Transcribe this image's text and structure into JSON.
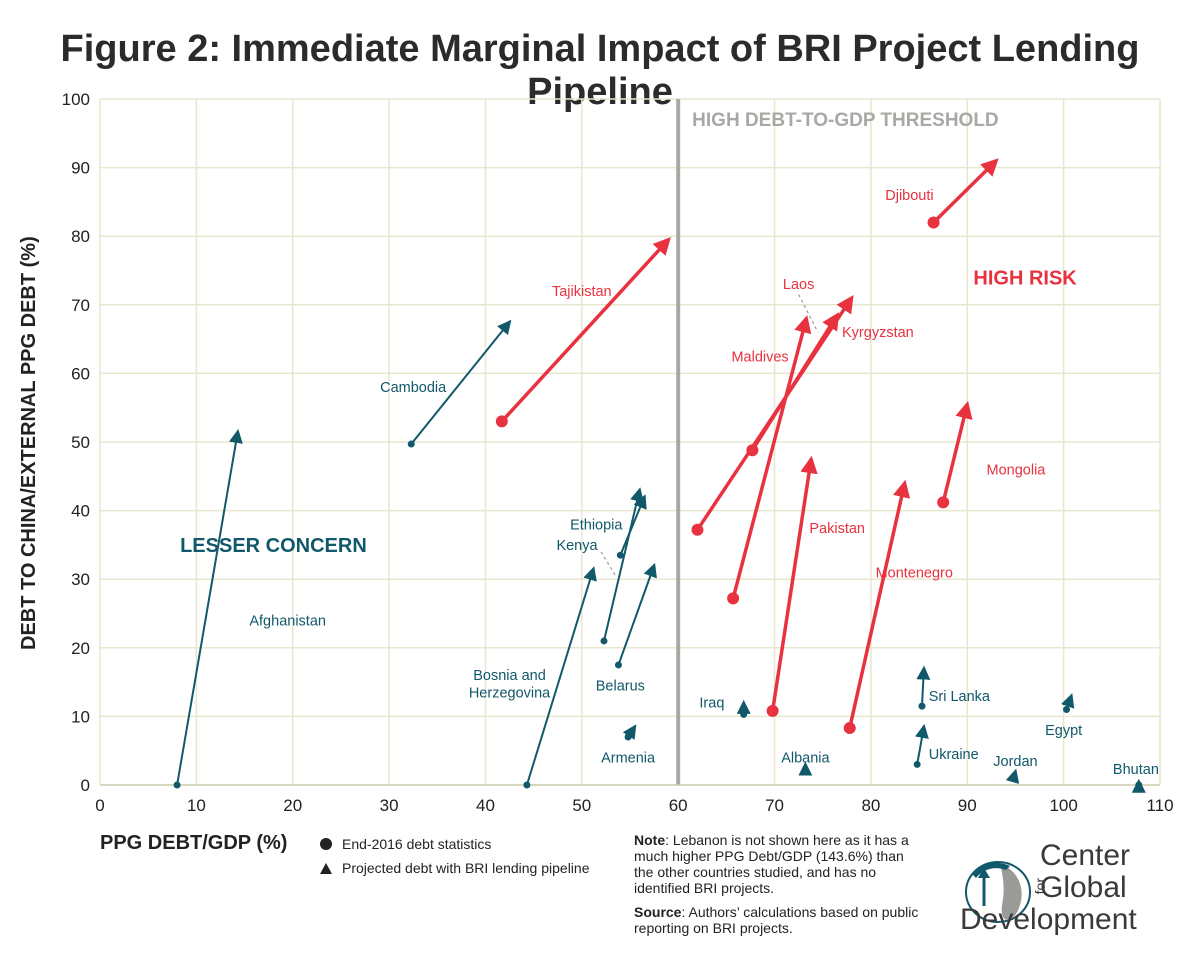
{
  "chart_data": {
    "type": "scatter",
    "title": "Figure 2: Immediate Marginal Impact of BRI Project Lending Pipeline",
    "xlabel": "PPG DEBT/GDP (%)",
    "ylabel": "DEBT TO CHINA/EXTERNAL PPG DEBT (%)",
    "xlim": [
      0,
      110
    ],
    "ylim": [
      0,
      100
    ],
    "xticks": [
      0,
      10,
      20,
      30,
      40,
      50,
      60,
      70,
      80,
      90,
      100,
      110
    ],
    "yticks": [
      0,
      10,
      20,
      30,
      40,
      50,
      60,
      70,
      80,
      90,
      100
    ],
    "grid": true,
    "threshold": {
      "x": 60,
      "label": "HIGH DEBT-TO-GDP THRESHOLD"
    },
    "region_labels": [
      {
        "text": "LESSER CONCERN",
        "x": 18,
        "y": 35,
        "group": "low"
      },
      {
        "text": "HIGH RISK",
        "x": 96,
        "y": 74,
        "group": "high"
      }
    ],
    "legend": {
      "circle": "End-2016 debt statistics",
      "triangle": "Projected debt with BRI lending pipeline"
    },
    "colors": {
      "high": "#e8323f",
      "low": "#11586a",
      "threshold": "#a8a8a4",
      "grid": "#e8e6cd"
    },
    "series": [
      {
        "name": "Afghanistan",
        "group": "low",
        "x0": 8,
        "y0": 0,
        "x1": 14.3,
        "y1": 51.5,
        "lx": 15.5,
        "ly": 24,
        "anchor": "start"
      },
      {
        "name": "Cambodia",
        "group": "low",
        "x0": 32.3,
        "y0": 49.7,
        "x1": 42.5,
        "y1": 67.5,
        "lx": 32.5,
        "ly": 58,
        "anchor": "middle"
      },
      {
        "name": "Ethiopia",
        "group": "low",
        "x0": 52.3,
        "y0": 21,
        "x1": 56,
        "y1": 43,
        "lx": 51.5,
        "ly": 38,
        "anchor": "middle"
      },
      {
        "name": "Kenya",
        "group": "low",
        "x0": 54,
        "y0": 33.5,
        "x1": 56.5,
        "y1": 42,
        "lx": 49.5,
        "ly": 35,
        "anchor": "middle"
      },
      {
        "name": "Belarus",
        "group": "low",
        "x0": 53.8,
        "y0": 17.5,
        "x1": 57.5,
        "y1": 32,
        "lx": 54,
        "ly": 14.5,
        "anchor": "middle"
      },
      {
        "name": "Bosnia and",
        "group": "low",
        "x0": 44.3,
        "y0": 0,
        "x1": 51.2,
        "y1": 31.5,
        "lx": 42.5,
        "ly": 16,
        "anchor": "middle"
      },
      {
        "name": "Herzegovina",
        "group": "low",
        "x0": null,
        "y0": null,
        "x1": null,
        "y1": null,
        "lx": 42.5,
        "ly": 13.5,
        "anchor": "middle"
      },
      {
        "name": "Armenia",
        "group": "low",
        "x0": 54.8,
        "y0": 7,
        "x1": 55.5,
        "y1": 8.5,
        "lx": 54.8,
        "ly": 4,
        "anchor": "middle"
      },
      {
        "name": "Iraq",
        "group": "low",
        "x0": 66.8,
        "y0": 10.3,
        "x1": 66.8,
        "y1": 12,
        "lx": 63.5,
        "ly": 12,
        "anchor": "middle"
      },
      {
        "name": "Albania",
        "group": "low",
        "x0": 73.2,
        "y0": 2,
        "x1": 73.2,
        "y1": 3,
        "lx": 73.2,
        "ly": 4,
        "anchor": "middle"
      },
      {
        "name": "Sri Lanka",
        "group": "low",
        "x0": 85.3,
        "y0": 11.5,
        "x1": 85.5,
        "y1": 17,
        "lx": 86,
        "ly": 13,
        "anchor": "start"
      },
      {
        "name": "Ukraine",
        "group": "low",
        "x0": 84.8,
        "y0": 3,
        "x1": 85.5,
        "y1": 8.5,
        "lx": 86,
        "ly": 4.5,
        "anchor": "start"
      },
      {
        "name": "Jordan",
        "group": "low",
        "x0": 94.8,
        "y0": 1,
        "x1": 95,
        "y1": 2,
        "lx": 95,
        "ly": 3.5,
        "anchor": "middle"
      },
      {
        "name": "Egypt",
        "group": "low",
        "x0": 100.3,
        "y0": 11,
        "x1": 100.8,
        "y1": 13,
        "lx": 100,
        "ly": 8,
        "anchor": "middle"
      },
      {
        "name": "Bhutan",
        "group": "low",
        "x0": 107.8,
        "y0": 0,
        "x1": 107.8,
        "y1": 0.5,
        "lx": 107.5,
        "ly": 2.3,
        "anchor": "middle"
      },
      {
        "name": "Tajikistan",
        "group": "high",
        "x0": 41.7,
        "y0": 53,
        "x1": 59,
        "y1": 79.5,
        "lx": 50,
        "ly": 72,
        "anchor": "middle"
      },
      {
        "name": "Djibouti",
        "group": "high",
        "x0": 86.5,
        "y0": 82,
        "x1": 93,
        "y1": 91,
        "lx": 84,
        "ly": 86,
        "anchor": "middle"
      },
      {
        "name": "Laos",
        "group": "high",
        "x0": 67.7,
        "y0": 48.8,
        "x1": 76.5,
        "y1": 68.5,
        "lx": 72.5,
        "ly": 73,
        "anchor": "middle"
      },
      {
        "name": "Kyrgyzstan",
        "group": "high",
        "x0": 62,
        "y0": 37.2,
        "x1": 78,
        "y1": 71,
        "lx": 77,
        "ly": 66,
        "anchor": "start"
      },
      {
        "name": "Maldives",
        "group": "high",
        "x0": 65.7,
        "y0": 27.2,
        "x1": 73.3,
        "y1": 68,
        "lx": 68.5,
        "ly": 62.5,
        "anchor": "middle"
      },
      {
        "name": "Pakistan",
        "group": "high",
        "x0": 69.8,
        "y0": 10.8,
        "x1": 73.8,
        "y1": 47.5,
        "lx": 76.5,
        "ly": 37.5,
        "anchor": "middle"
      },
      {
        "name": "Montenegro",
        "group": "high",
        "x0": 77.8,
        "y0": 8.3,
        "x1": 83.5,
        "y1": 44,
        "lx": 84.5,
        "ly": 31,
        "anchor": "middle"
      },
      {
        "name": "Mongolia",
        "group": "high",
        "x0": 87.5,
        "y0": 41.2,
        "x1": 90,
        "y1": 55.5,
        "lx": 92,
        "ly": 46,
        "anchor": "start"
      }
    ],
    "leader_lines": [
      {
        "name": "Laos",
        "x0": 72.5,
        "y0": 71.5,
        "x1": 74.5,
        "y1": 66
      },
      {
        "name": "Kenya",
        "x0": 52,
        "y0": 34,
        "x1": 53.5,
        "y1": 30.5
      }
    ]
  },
  "notes": {
    "note_label": "Note",
    "note_text": ": Lebanon is not shown here as it has a much higher PPG Debt/GDP (143.6%) than the other countries studied, and has no identified BRI projects.",
    "source_label": "Source",
    "source_text": ": Authors’ calculations based on public reporting on BRI projects."
  },
  "logo": {
    "line1": "Center",
    "line2": "Global",
    "line3": "Development",
    "for": "for"
  }
}
